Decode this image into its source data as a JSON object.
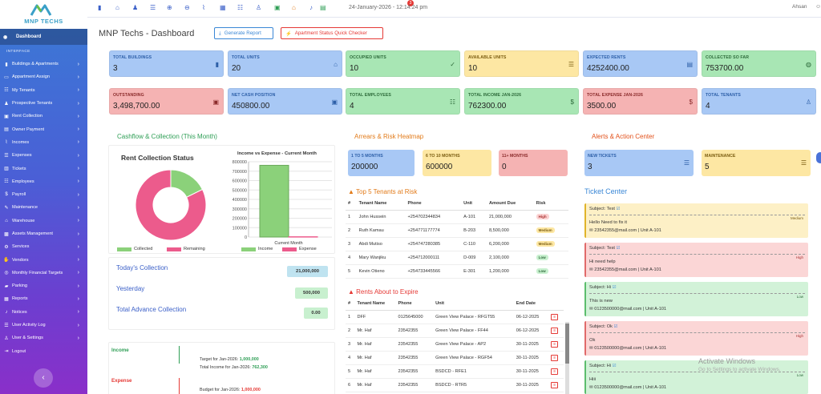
{
  "brand": {
    "name": "MNP TECHS"
  },
  "sidebar": {
    "dashboard": "Dashboard",
    "section": "INTERFACE",
    "items": [
      {
        "label": "Buildings & Apartments",
        "icon": "building-icon"
      },
      {
        "label": "Appartment Assign",
        "icon": "id-card-icon"
      },
      {
        "label": "My Tenants",
        "icon": "users-icon"
      },
      {
        "label": "Prospective Tenants",
        "icon": "user-plus-icon"
      },
      {
        "label": "Rent Collection",
        "icon": "money-icon"
      },
      {
        "label": "Owner Payment",
        "icon": "wallet-icon"
      },
      {
        "label": "Incomes",
        "icon": "chart-icon"
      },
      {
        "label": "Expenses",
        "icon": "list-icon"
      },
      {
        "label": "Tickets",
        "icon": "ticket-icon"
      },
      {
        "label": "Employees",
        "icon": "users-icon"
      },
      {
        "label": "Payroll",
        "icon": "dollar-icon"
      },
      {
        "label": "Maintenance",
        "icon": "wrench-icon"
      },
      {
        "label": "Warehouse",
        "icon": "warehouse-icon"
      },
      {
        "label": "Assets Management",
        "icon": "box-icon"
      },
      {
        "label": "Services",
        "icon": "cog-icon"
      },
      {
        "label": "Vendors",
        "icon": "handshake-icon"
      },
      {
        "label": "Monthly Financial Targets",
        "icon": "target-icon"
      },
      {
        "label": "Parking",
        "icon": "car-icon"
      },
      {
        "label": "Reports",
        "icon": "report-icon"
      },
      {
        "label": "Notices",
        "icon": "bell-icon"
      },
      {
        "label": "User Activity Log",
        "icon": "list-icon"
      },
      {
        "label": "User & Settings",
        "icon": "user-cog-icon"
      },
      {
        "label": "Logout",
        "icon": "logout-icon"
      }
    ],
    "collapse": "‹"
  },
  "topbar": {
    "datetime": "24-January-2026 - 12:14:24 pm",
    "user": "Ahsan",
    "bell_count": "3"
  },
  "page": {
    "title": "MNP Techs - Dashboard",
    "generate_report": "Generate Report",
    "quick_checker": "Apartment Status Quick Checker"
  },
  "cards": [
    {
      "label": "TOTAL BUILDINGS",
      "value": "3",
      "color": "blue",
      "icon": "building-icon"
    },
    {
      "label": "TOTAL UNITS",
      "value": "20",
      "color": "blue",
      "icon": "home-icon"
    },
    {
      "label": "OCCUPIED UNITS",
      "value": "10",
      "color": "green",
      "icon": "check-circle-icon"
    },
    {
      "label": "AVAILABLE UNITS",
      "value": "10",
      "color": "yellow",
      "icon": "list-icon"
    },
    {
      "label": "EXPECTED RENTS",
      "value": "4252400.00",
      "color": "blue",
      "icon": "wallet-icon"
    },
    {
      "label": "COLLECTED SO FAR",
      "value": "753700.00",
      "color": "green",
      "icon": "coins-icon"
    },
    {
      "label": "OUTSTANDING",
      "value": "3,498,700.00",
      "color": "red",
      "icon": "money-icon"
    },
    {
      "label": "NET CASH POSITION",
      "value": "450800.00",
      "color": "blue",
      "icon": "money-icon"
    },
    {
      "label": "TOTAL EMPLOYEES",
      "value": "4",
      "color": "green",
      "icon": "users-icon"
    },
    {
      "label": "TOTAL INCOME JAN-2026",
      "value": "762300.00",
      "color": "green",
      "icon": "dollar-icon"
    },
    {
      "label": "TOTAL EXPENSE JAN-2026",
      "value": "3500.00",
      "color": "red",
      "icon": "dollar-icon"
    },
    {
      "label": "TOTAL TENANTS",
      "value": "4",
      "color": "blue",
      "icon": "user-icon"
    }
  ],
  "sections": {
    "cashflow": "Cashflow & Collection (This Month)",
    "arrears": "Arrears & Risk Heatmap",
    "alerts": "Alerts & Action Center"
  },
  "chart_data": [
    {
      "type": "pie",
      "title": "Rent Collection Status",
      "categories": [
        "Collected",
        "Remaining"
      ],
      "values": [
        753700,
        3498700
      ],
      "colors": [
        "#8bd17a",
        "#ec5b8c"
      ],
      "legend": "bottom"
    },
    {
      "type": "bar",
      "title": "Income vs Expense - Current Month",
      "categories": [
        "Current Month"
      ],
      "series": [
        {
          "name": "Income",
          "values": [
            762300
          ],
          "color": "#8bd17a"
        },
        {
          "name": "Expense",
          "values": [
            3500
          ],
          "color": "#ec5b8c"
        }
      ],
      "ylim": [
        0,
        800000
      ],
      "yticks": [
        "800000",
        "700000",
        "600000",
        "500000",
        "400000",
        "300000",
        "200000",
        "100000",
        "0"
      ],
      "legend": "bottom"
    }
  ],
  "collection": {
    "today_label": "Today's Collection",
    "today_value": "21,000,000",
    "yesterday_label": "Yesterday",
    "yesterday_value": "500,000",
    "advance_label": "Total Advance Collection",
    "advance_value": "0.00"
  },
  "incomeexpense": {
    "income_label": "Income",
    "income_target": "Target for Jan-2026: ",
    "income_target_value": "1,000,000",
    "income_total": "Total Income for Jan-2026: ",
    "income_total_value": "762,300",
    "expense_label": "Expense",
    "expense_budget": "Budget for Jan-2026: ",
    "expense_budget_value": "1,000,000"
  },
  "arrears": [
    {
      "label": "1 TO 5 MONTHS",
      "value": "200000",
      "color": "blue"
    },
    {
      "label": "6 TO 10 MONTHS",
      "value": "600000",
      "color": "yellow"
    },
    {
      "label": "11+ MONTHS",
      "value": "0",
      "color": "red"
    }
  ],
  "risk": {
    "title": "Top 5 Tenants at Risk",
    "headers": [
      "#",
      "Tenant Name",
      "Phone",
      "Unit",
      "Amount Due",
      "Risk"
    ],
    "rows": [
      {
        "n": "1",
        "name": "John Hussein",
        "phone": "+254702344834",
        "unit": "A-101",
        "amount": "21,000,000",
        "risk": "High",
        "cls": "amt-red"
      },
      {
        "n": "2",
        "name": "Ruth Kamau",
        "phone": "+254771177774",
        "unit": "B-203",
        "amount": "8,500,000",
        "risk": "Medium",
        "cls": "amt-red"
      },
      {
        "n": "3",
        "name": "Abdi Mutiso",
        "phone": "+254747280385",
        "unit": "C-110",
        "amount": "6,200,000",
        "risk": "Medium",
        "cls": "amt-orange"
      },
      {
        "n": "4",
        "name": "Mary Wanjiku",
        "phone": "+254712000111",
        "unit": "D-009",
        "amount": "2,100,000",
        "risk": "Low",
        "cls": "amt-green"
      },
      {
        "n": "5",
        "name": "Kevin Otieno",
        "phone": "+254733445566",
        "unit": "E-301",
        "amount": "1,200,000",
        "risk": "Low",
        "cls": "amt-green"
      }
    ]
  },
  "expire": {
    "title": "Rents About to Expire",
    "headers": [
      "#",
      "Tenant Name",
      "Phone",
      "Unit",
      "End Date"
    ],
    "rows": [
      {
        "n": "1",
        "name": "DFF",
        "phone": "0125645000",
        "unit": "Green View Palace - RFGT55",
        "end": "06-12-2025"
      },
      {
        "n": "2",
        "name": "Mr. Haf",
        "phone": "23542355",
        "unit": "Green View Palace - FF44",
        "end": "06-12-2025"
      },
      {
        "n": "3",
        "name": "Mr. Haf",
        "phone": "23542355",
        "unit": "Green View Palace - AP2",
        "end": "30-11-2025"
      },
      {
        "n": "4",
        "name": "Mr. Haf",
        "phone": "23542355",
        "unit": "Green View Palace - RGF54",
        "end": "30-11-2025"
      },
      {
        "n": "5",
        "name": "Mr. Haf",
        "phone": "23542355",
        "unit": "BSDCD - RFE1",
        "end": "30-11-2025"
      },
      {
        "n": "6",
        "name": "Mr. Haf",
        "phone": "23542355",
        "unit": "BSDCD - RTR5",
        "end": "30-11-2025"
      }
    ]
  },
  "alerts": [
    {
      "label": "NEW TICKETS",
      "value": "3",
      "color": "blue"
    },
    {
      "label": "MAINTENANCE",
      "value": "5",
      "color": "yellow"
    }
  ],
  "tickets": {
    "title": "Ticket Center",
    "items": [
      {
        "subject": "Subject: Test",
        "msg": "Hello Need to fix it",
        "meta": "23542355@mail.com |  Unit A-101",
        "priority": "Medium",
        "color": "yellow"
      },
      {
        "subject": "Subject: Test",
        "msg": "Hi need help",
        "meta": "23542355@mail.com |  Unit A-101",
        "priority": "High",
        "color": "red"
      },
      {
        "subject": "Subject: Hi",
        "msg": "This is new",
        "meta": "0123500000@mail.com |  Unit A-101",
        "priority": "Low",
        "color": "green"
      },
      {
        "subject": "Subject: Ok",
        "msg": "Ok",
        "meta": "0123500000@mail.com |  Unit A-101",
        "priority": "High",
        "color": "red"
      },
      {
        "subject": "Subject: Hi",
        "msg": "Hiii",
        "meta": "0123500000@mail.com |  Unit A-101",
        "priority": "Low",
        "color": "green"
      }
    ]
  },
  "watermark": {
    "line1": "Activate Windows",
    "line2": "Go to Settings to activate Windows."
  }
}
